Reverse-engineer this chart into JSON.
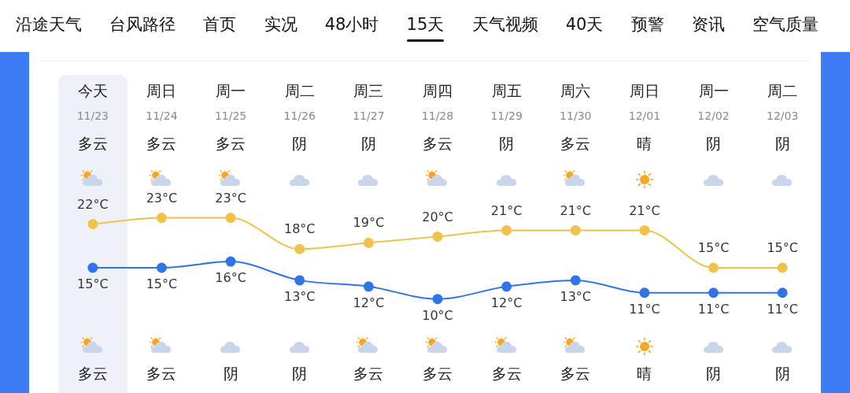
{
  "chart_data": {
    "type": "line",
    "categories": [
      "11/23",
      "11/24",
      "11/25",
      "11/26",
      "11/27",
      "11/28",
      "11/29",
      "11/30",
      "12/01",
      "12/02",
      "12/03"
    ],
    "series": [
      {
        "color": "#f0c24a",
        "values": [
          22,
          23,
          23,
          18,
          19,
          20,
          21,
          21,
          21,
          15,
          15
        ],
        "value_labels": [
          "22°C",
          "23°C",
          "23°C",
          "18°C",
          "19°C",
          "20°C",
          "21°C",
          "21°C",
          "21°C",
          "15°C",
          "15°C"
        ]
      },
      {
        "color": "#2f74e8",
        "values": [
          15,
          15,
          16,
          13,
          12,
          10,
          12,
          13,
          11,
          11,
          11
        ],
        "value_labels": [
          "15°C",
          "15°C",
          "16°C",
          "13°C",
          "12°C",
          "10°C",
          "12°C",
          "13°C",
          "11°C",
          "11°C",
          "11°C"
        ]
      }
    ],
    "marker": "circle",
    "line_style": "solid",
    "legend": false,
    "grid": false,
    "annotations": [
      "沿途天气",
      "台风路径",
      "首页",
      "实况",
      "48小时",
      "15天",
      "天气视频",
      "40天",
      "预警",
      "资讯",
      "空气质量",
      "今天",
      "多云",
      "多云",
      "周日",
      "多云",
      "多云",
      "周一",
      "多云",
      "阴",
      "周二",
      "阴",
      "阴",
      "周三",
      "阴",
      "多云",
      "周四",
      "多云",
      "多云",
      "周五",
      "阴",
      "多云",
      "周六",
      "多云",
      "多云",
      "周日",
      "晴",
      "晴",
      "周一",
      "阴",
      "阴",
      "周二",
      "阴",
      "阴"
    ]
  }
}
